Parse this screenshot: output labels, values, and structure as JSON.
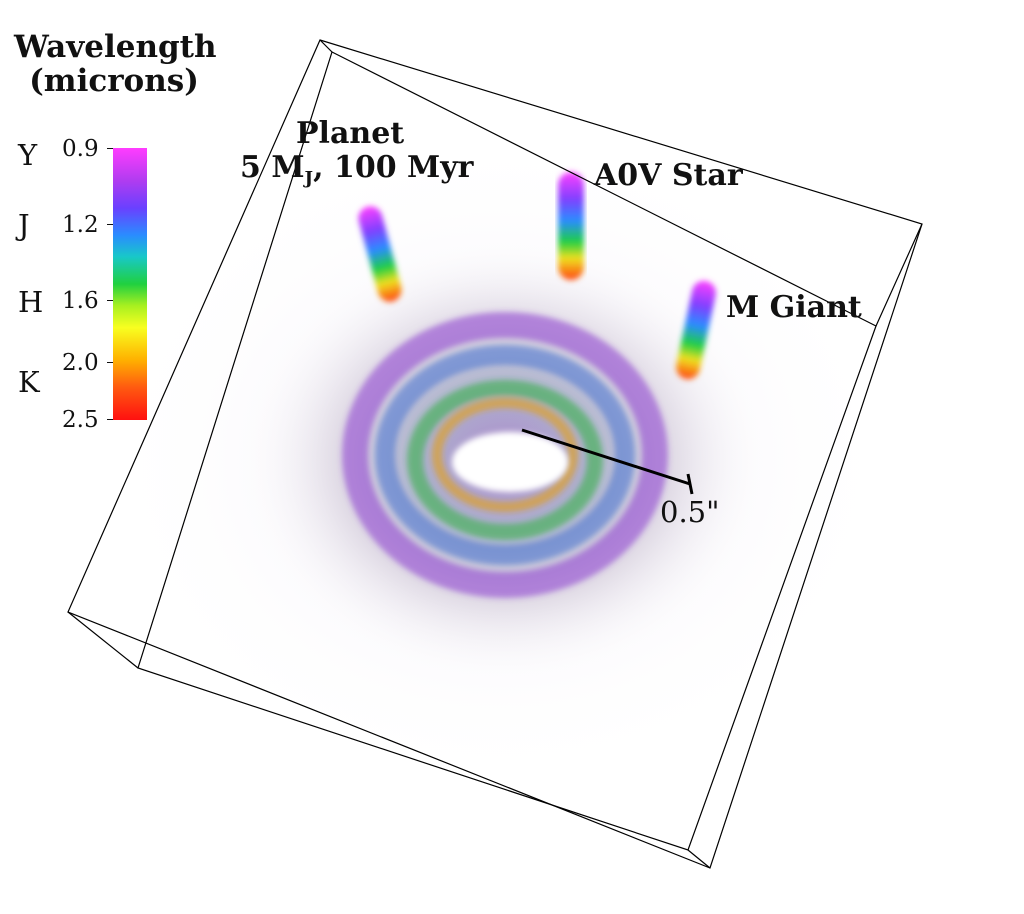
{
  "legend": {
    "title_line1": "Wavelength",
    "title_line2": "(microns)",
    "bands": [
      {
        "name": "Y",
        "wavelength": "0.9"
      },
      {
        "name": "J",
        "wavelength": "1.2"
      },
      {
        "name": "H",
        "wavelength": "1.6"
      },
      {
        "name": "K",
        "wavelength": "2.0"
      }
    ],
    "end_tick": "2.5"
  },
  "labels": {
    "planet_line1": "Planet",
    "planet_line2_prefix": "5 M",
    "planet_line2_sub": "J",
    "planet_line2_suffix": ", 100 Myr",
    "star": "A0V Star",
    "giant": "M Giant",
    "scale": "0.5\""
  },
  "colors": {
    "Y": "#ff40ff",
    "J": "#2a8cff",
    "H": "#a8f020",
    "K": "#ff2a10",
    "box_edge": "#000000"
  }
}
